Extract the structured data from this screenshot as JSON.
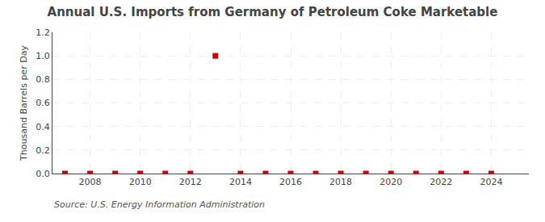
{
  "chart_data": {
    "type": "scatter",
    "title": "Annual U.S. Imports from Germany of Petroleum Coke Marketable",
    "y_label": "Thousand Barrels per Day",
    "annotations": [
      "Source: U.S. Energy Information Administration"
    ],
    "x": [
      2007,
      2008,
      2009,
      2010,
      2011,
      2012,
      2013,
      2014,
      2015,
      2016,
      2017,
      2018,
      2019,
      2020,
      2021,
      2022,
      2023,
      2024
    ],
    "values": [
      0.0,
      0.0,
      0.0,
      0.0,
      0.0,
      0.0,
      1.0,
      0.0,
      0.0,
      0.0,
      0.0,
      0.0,
      0.0,
      0.0,
      0.0,
      0.0,
      0.0,
      0.0
    ],
    "xlim": [
      2006.5,
      2025.5
    ],
    "xticks": [
      2008,
      2010,
      2012,
      2014,
      2016,
      2018,
      2020,
      2022,
      2024
    ],
    "ylim": [
      0.0,
      1.2
    ],
    "yticks": [
      {
        "value": 0.0,
        "label": "0.0"
      },
      {
        "value": 0.2,
        "label": "0.2"
      },
      {
        "value": 0.4,
        "label": "0.4"
      },
      {
        "value": 0.6,
        "label": "0.6"
      },
      {
        "value": 0.8,
        "label": "0.8"
      },
      {
        "value": 1.0,
        "label": "1.0"
      },
      {
        "value": 1.2,
        "label": "1.2"
      }
    ],
    "color": "#cc0000",
    "marker": "square",
    "grid": true
  }
}
